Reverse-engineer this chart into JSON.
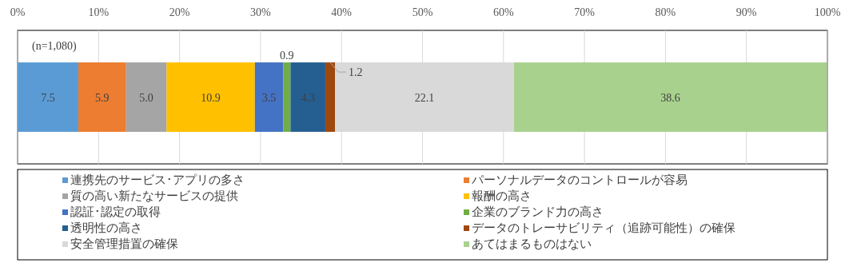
{
  "chart_data": {
    "type": "bar",
    "orientation": "horizontal",
    "stacked": true,
    "categories": [
      null
    ],
    "xlim": [
      0,
      100
    ],
    "xticks": [
      {
        "value": 0,
        "label": "0%"
      },
      {
        "value": 10,
        "label": "10%"
      },
      {
        "value": 20,
        "label": "20%"
      },
      {
        "value": 30,
        "label": "30%"
      },
      {
        "value": 40,
        "label": "40%"
      },
      {
        "value": 50,
        "label": "50%"
      },
      {
        "value": 60,
        "label": "60%"
      },
      {
        "value": 70,
        "label": "70%"
      },
      {
        "value": 80,
        "label": "80%"
      },
      {
        "value": 90,
        "label": "90%"
      },
      {
        "value": 100,
        "label": "100%"
      }
    ],
    "grid": "x",
    "legend": "bottom",
    "annotations": [
      "(n=1,080)"
    ],
    "series": [
      {
        "name": "連携先のサービス･アプリの多さ",
        "color": "#5b9bd5",
        "values": [
          7.5
        ],
        "value_labels": [
          "7.5"
        ]
      },
      {
        "name": "パーソナルデータのコントロールが容易",
        "color": "#ed7d31",
        "values": [
          5.9
        ],
        "value_labels": [
          "5.9"
        ]
      },
      {
        "name": "質の高い新たなサービスの提供",
        "color": "#a5a5a5",
        "values": [
          5.0
        ],
        "value_labels": [
          "5.0"
        ]
      },
      {
        "name": "報酬の高さ",
        "color": "#ffc000",
        "values": [
          10.9
        ],
        "value_labels": [
          "10.9"
        ]
      },
      {
        "name": "認証･認定の取得",
        "color": "#4472c4",
        "values": [
          3.5
        ],
        "value_labels": [
          "3.5"
        ]
      },
      {
        "name": "企業のブランド力の高さ",
        "color": "#70ad47",
        "values": [
          0.9
        ],
        "value_labels": [
          "0.9"
        ]
      },
      {
        "name": "透明性の高さ",
        "color": "#255e91",
        "values": [
          4.3
        ],
        "value_labels": [
          "4.3"
        ]
      },
      {
        "name": "データのトレーサビリティ（追跡可能性）の確保",
        "color": "#9e480e",
        "values": [
          1.2
        ],
        "value_labels": [
          "1.2"
        ]
      },
      {
        "name": "安全管理措置の確保",
        "color": "#d9d9d9",
        "values": [
          22.1
        ],
        "value_labels": [
          "22.1"
        ]
      },
      {
        "name": "あてはまるものはない",
        "color": "#a9d18e",
        "values": [
          38.6
        ],
        "value_labels": [
          "38.6"
        ]
      }
    ]
  }
}
